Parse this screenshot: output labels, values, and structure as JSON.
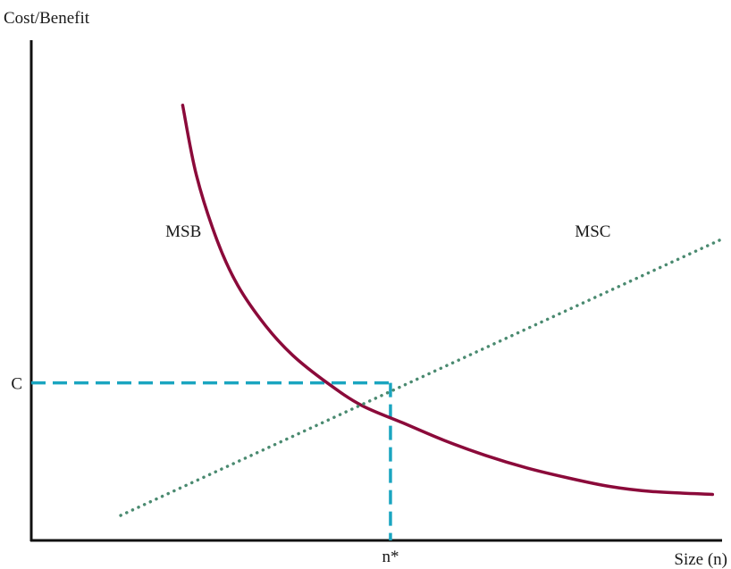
{
  "chart_data": {
    "type": "line",
    "title": "",
    "xlabel": "Size (n)",
    "ylabel": "Cost/Benefit",
    "xlim": [
      0,
      100
    ],
    "ylim": [
      0,
      100
    ],
    "grid": false,
    "legend": "none",
    "series": [
      {
        "name": "MSB",
        "color": "#8b0a3a",
        "style": "solid",
        "x": [
          22,
          24,
          27,
          30,
          34,
          38,
          43,
          48,
          54,
          60,
          66,
          72,
          78,
          84,
          90,
          99
        ],
        "y": [
          87,
          73,
          60,
          51,
          43,
          37,
          31.5,
          27,
          23.5,
          20,
          17,
          14.5,
          12.5,
          10.8,
          9.8,
          9.2
        ]
      },
      {
        "name": "MSC",
        "color": "#4a8a70",
        "style": "dotted",
        "x": [
          13,
          100
        ],
        "y": [
          5,
          60
        ]
      }
    ],
    "annotations": [
      {
        "label": "MSB",
        "x": 19.5,
        "y": 62
      },
      {
        "label": "MSC",
        "x": 79,
        "y": 62
      },
      {
        "label": "C",
        "axis": "y",
        "value": 31.5
      },
      {
        "label": "n*",
        "axis": "x",
        "value": 52.2
      }
    ],
    "guide_lines": {
      "color": "#1aa5c0",
      "x": 52.2,
      "y": 31.5
    },
    "axis_color": "#111111"
  }
}
